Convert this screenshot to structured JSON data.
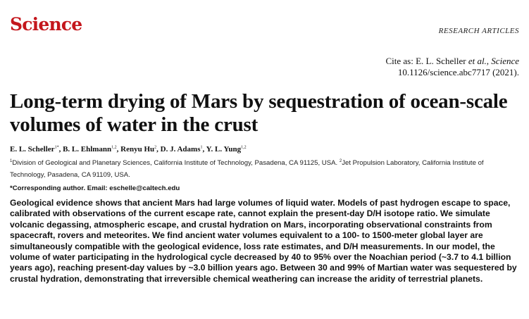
{
  "header": {
    "journal": "Science",
    "section": "RESEARCH ARTICLES"
  },
  "citation": {
    "prefix": "Cite as: E. L. Scheller ",
    "etal": "et al., Science",
    "doi": "10.1126/science.abc7717 (2021)."
  },
  "title": "Long-term drying of Mars by sequestration of ocean-scale volumes of water in the crust",
  "authors": [
    {
      "name": "E. L. Scheller",
      "sup": "1*"
    },
    {
      "name": "B. L. Ehlmann",
      "sup": "1,2"
    },
    {
      "name": "Renyu Hu",
      "sup": "2"
    },
    {
      "name": "D. J. Adams",
      "sup": "1"
    },
    {
      "name": "Y. L. Yung",
      "sup": "1,2"
    }
  ],
  "affiliations": [
    {
      "sup": "1",
      "text": "Division of Geological and Planetary Sciences, California Institute of Technology, Pasadena, CA 91125, USA. "
    },
    {
      "sup": "2",
      "text": "Jet Propulsion Laboratory, California Institute of Technology, Pasadena, CA 91109, USA."
    }
  ],
  "corresponding": "*Corresponding author. Email: eschelle@caltech.edu",
  "abstract": "Geological evidence shows that ancient Mars had large volumes of liquid water. Models of past hydrogen escape to space, calibrated with observations of the current escape rate, cannot explain the present-day D/H isotope ratio. We simulate volcanic degassing, atmospheric escape, and crustal hydration on Mars, incorporating observational constraints from spacecraft, rovers and meteorites. We find ancient water volumes equivalent to a 100- to 1500-meter global layer are simultaneously compatible with the geological evidence, loss rate estimates, and D/H measurements. In our model, the volume of water participating in the hydrological cycle decreased by 40 to 95% over the Noachian period (~3.7 to 4.1 billion years ago), reaching present-day values by ~3.0 billion years ago. Between 30 and 99% of Martian water was sequestered by crustal hydration, demonstrating that irreversible chemical weathering can increase the aridity of terrestrial planets.",
  "colors": {
    "logo": "#c4161c",
    "text": "#111111"
  }
}
